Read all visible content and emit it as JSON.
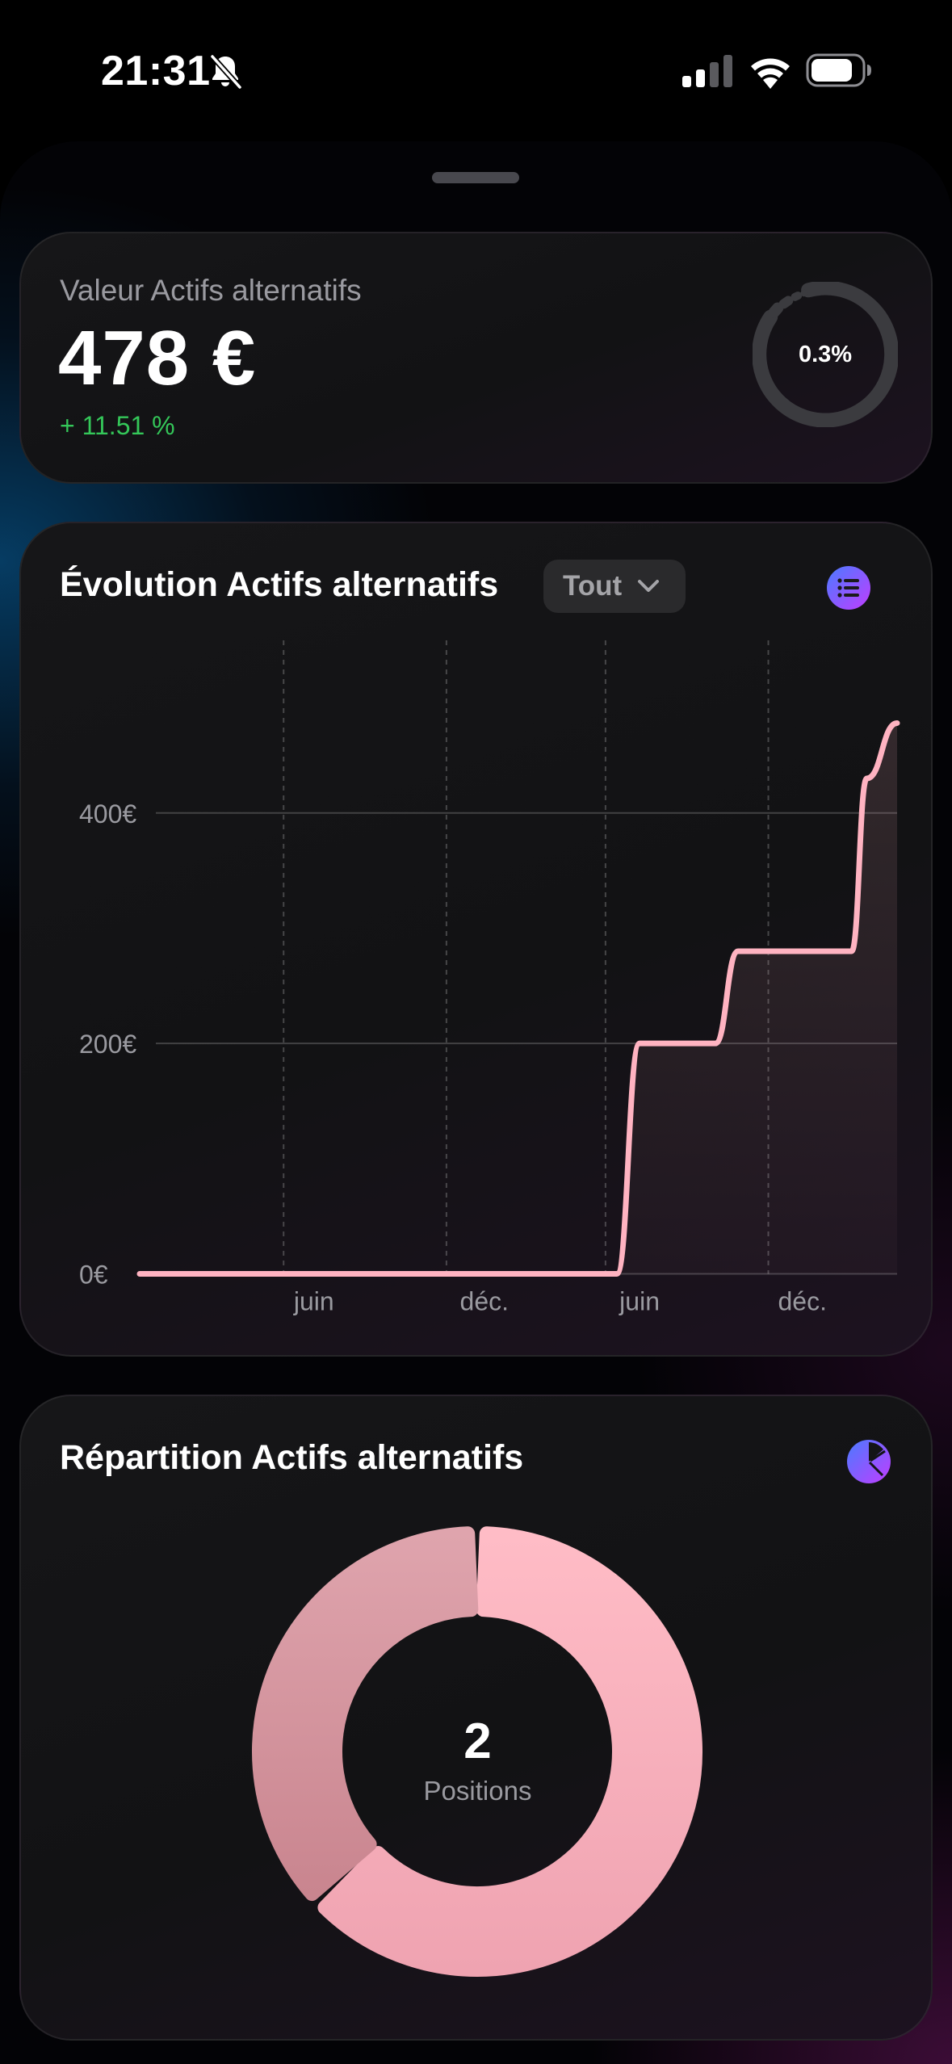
{
  "status_bar": {
    "time": "21:31",
    "icons": [
      "bell-slash-icon",
      "signal-icon",
      "wifi-icon",
      "battery-icon"
    ]
  },
  "summary": {
    "title": "Valeur Actifs alternatifs",
    "amount": "478 €",
    "change": "+ 11.51 %",
    "ring_percent_label": "0.3%",
    "ring_fraction": 0.003,
    "change_color": "#34c759"
  },
  "evolution": {
    "title": "Évolution Actifs alternatifs",
    "filter_label": "Tout",
    "menu_icon": "list-icon",
    "accent_color": "#ffb3c1"
  },
  "repartition": {
    "title": "Répartition Actifs alternatifs",
    "menu_icon": "pie-chart-icon",
    "count": "2",
    "caption": "Positions"
  },
  "chart_data": [
    {
      "type": "line",
      "title": "Évolution Actifs alternatifs",
      "xlabel": "",
      "ylabel": "",
      "x_tick_labels": [
        "juin",
        "déc.",
        "juin",
        "déc."
      ],
      "y_tick_labels": [
        "0€",
        "200€",
        "400€"
      ],
      "ylim": [
        0,
        550
      ],
      "grid": true,
      "series": [
        {
          "values": [
            {
              "x": 0.0,
              "y": 0
            },
            {
              "x": 0.25,
              "y": 0
            },
            {
              "x": 0.5,
              "y": 0
            },
            {
              "x": 0.6,
              "y": 0
            },
            {
              "x": 0.63,
              "y": 0
            },
            {
              "x": 0.66,
              "y": 200
            },
            {
              "x": 0.76,
              "y": 200
            },
            {
              "x": 0.79,
              "y": 280
            },
            {
              "x": 0.94,
              "y": 280
            },
            {
              "x": 0.96,
              "y": 430
            },
            {
              "x": 1.0,
              "y": 478
            }
          ]
        }
      ]
    },
    {
      "type": "pie",
      "title": "Répartition Actifs alternatifs",
      "slices": [
        {
          "value": 0.63,
          "color": "#ffb6c0"
        },
        {
          "value": 0.37,
          "color": "#d99aa6"
        }
      ],
      "center_label": "2",
      "center_caption": "Positions"
    }
  ]
}
